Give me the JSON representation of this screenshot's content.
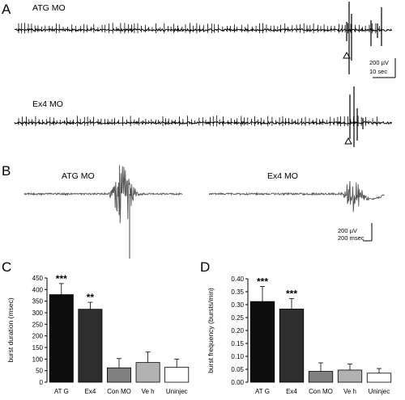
{
  "panels": {
    "a": {
      "letter": "A",
      "traces": [
        {
          "label": "ATG MO"
        },
        {
          "label": "Ex4 MO"
        }
      ],
      "scale_bar": {
        "amplitude": "200 µV",
        "time": "10 sec"
      }
    },
    "b": {
      "letter": "B",
      "traces": [
        {
          "label": "ATG MO"
        },
        {
          "label": "Ex4 MO"
        }
      ],
      "scale_bar": {
        "amplitude": "200 µV",
        "time": "200 msec"
      }
    },
    "c": {
      "letter": "C"
    },
    "d": {
      "letter": "D"
    }
  },
  "chart_data": [
    {
      "type": "bar",
      "panel": "C",
      "categories": [
        "AT G",
        "Ex4",
        "Con MO",
        "Ve h",
        "Uninjec"
      ],
      "values": [
        378,
        315,
        62,
        85,
        65
      ],
      "errors": [
        48,
        30,
        40,
        45,
        35
      ],
      "significance": [
        "***",
        "**",
        "",
        "",
        ""
      ],
      "bar_colors": [
        "#0d0d0d",
        "#2e2e2e",
        "#808080",
        "#b2b2b2",
        "#ffffff"
      ],
      "ylabel": "burst duration (msec)",
      "xlabel": "",
      "ylim": [
        0,
        450
      ],
      "yticks": [
        "0",
        "50",
        "100",
        "150",
        "200",
        "250",
        "300",
        "350",
        "400",
        "450"
      ]
    },
    {
      "type": "bar",
      "panel": "D",
      "categories": [
        "AT G",
        "Ex4",
        "Con MO",
        "Ve h",
        "Uninjec"
      ],
      "values": [
        0.312,
        0.283,
        0.042,
        0.047,
        0.035
      ],
      "errors": [
        0.058,
        0.04,
        0.033,
        0.023,
        0.018
      ],
      "significance": [
        "***",
        "***",
        "",
        "",
        ""
      ],
      "bar_colors": [
        "#0d0d0d",
        "#2e2e2e",
        "#808080",
        "#b2b2b2",
        "#ffffff"
      ],
      "ylabel": "burst frequency (bursts/min)",
      "xlabel": "",
      "ylim": [
        0,
        0.4
      ],
      "yticks": [
        "0.00",
        "0.05",
        "0.10",
        "0.15",
        "0.20",
        "0.25",
        "0.30",
        "0.35",
        "0.40"
      ]
    }
  ]
}
